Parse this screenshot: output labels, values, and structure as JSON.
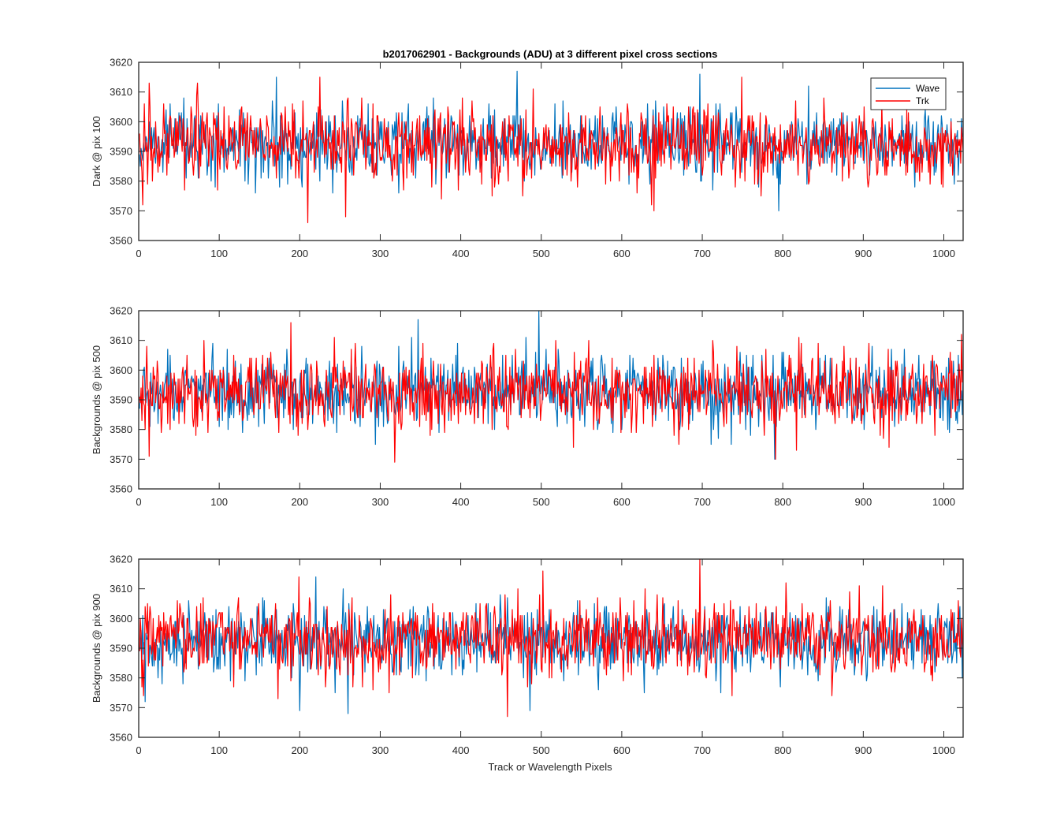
{
  "figure": {
    "title": "b2017062901 - Backgrounds (ADU) at 3 different pixel cross sections",
    "xlabel": "Track or Wavelength Pixels"
  },
  "colors": {
    "Wave": "#0072BD",
    "Trk": "#FF0000",
    "axis": "#262626",
    "background": "#FFFFFF"
  },
  "chart_data": [
    {
      "type": "line",
      "ylabel": "Dark @ pix 100",
      "xlim": [
        0,
        1024
      ],
      "ylim": [
        3560,
        3620
      ],
      "xticks": [
        0,
        100,
        200,
        300,
        400,
        500,
        600,
        700,
        800,
        900,
        1000
      ],
      "yticks": [
        3560,
        3570,
        3580,
        3590,
        3600,
        3610,
        3620
      ],
      "legend": {
        "position": "top-right",
        "entries": [
          "Wave",
          "Trk"
        ]
      },
      "grid": false,
      "series": [
        {
          "name": "Wave",
          "x_range": [
            1,
            1024
          ],
          "mean": 3592.5,
          "spread": 6,
          "min": 3570,
          "max": 3617,
          "peaks": [
            [
              171,
              3615
            ],
            [
              470,
              3617
            ],
            [
              697,
              3616
            ],
            [
              795,
              3570
            ]
          ]
        },
        {
          "name": "Trk",
          "x_range": [
            1,
            1024
          ],
          "mean": 3592.5,
          "spread": 6.5,
          "min": 3566,
          "max": 3615,
          "peaks": [
            [
              13,
              3613
            ],
            [
              73,
              3613
            ],
            [
              210,
              3566
            ],
            [
              225,
              3615
            ],
            [
              257,
              3568
            ],
            [
              640,
              3570
            ]
          ]
        }
      ]
    },
    {
      "type": "line",
      "ylabel": "Backgrounds @ pix 500",
      "xlim": [
        0,
        1024
      ],
      "ylim": [
        3560,
        3620
      ],
      "xticks": [
        0,
        100,
        200,
        300,
        400,
        500,
        600,
        700,
        800,
        900,
        1000
      ],
      "yticks": [
        3560,
        3570,
        3580,
        3590,
        3600,
        3610,
        3620
      ],
      "grid": false,
      "series": [
        {
          "name": "Wave",
          "x_range": [
            1,
            1024
          ],
          "mean": 3593,
          "spread": 6,
          "min": 3570,
          "max": 3620,
          "peaks": [
            [
              347,
              3617
            ],
            [
              497,
              3620
            ],
            [
              790,
              3570
            ]
          ]
        },
        {
          "name": "Trk",
          "x_range": [
            1,
            1024
          ],
          "mean": 3593,
          "spread": 6.5,
          "min": 3569,
          "max": 3616,
          "peaks": [
            [
              189,
              3616
            ],
            [
              318,
              3569
            ],
            [
              791,
              3570
            ],
            [
              1022,
              3612
            ]
          ]
        }
      ]
    },
    {
      "type": "line",
      "ylabel": "Backgrounds @ pix 900",
      "xlim": [
        0,
        1024
      ],
      "ylim": [
        3560,
        3620
      ],
      "xticks": [
        0,
        100,
        200,
        300,
        400,
        500,
        600,
        700,
        800,
        900,
        1000
      ],
      "yticks": [
        3560,
        3570,
        3580,
        3590,
        3600,
        3610,
        3620
      ],
      "grid": false,
      "series": [
        {
          "name": "Wave",
          "x_range": [
            1,
            1024
          ],
          "mean": 3592.5,
          "spread": 6,
          "min": 3568,
          "max": 3614,
          "peaks": [
            [
              8,
              3572
            ],
            [
              220,
              3614
            ],
            [
              260,
              3568
            ]
          ]
        },
        {
          "name": "Trk",
          "x_range": [
            1,
            1024
          ],
          "mean": 3593,
          "spread": 6.5,
          "min": 3567,
          "max": 3620,
          "peaks": [
            [
              199,
              3614
            ],
            [
              458,
              3567
            ],
            [
              697,
              3620
            ],
            [
              804,
              3612
            ]
          ]
        }
      ]
    }
  ]
}
